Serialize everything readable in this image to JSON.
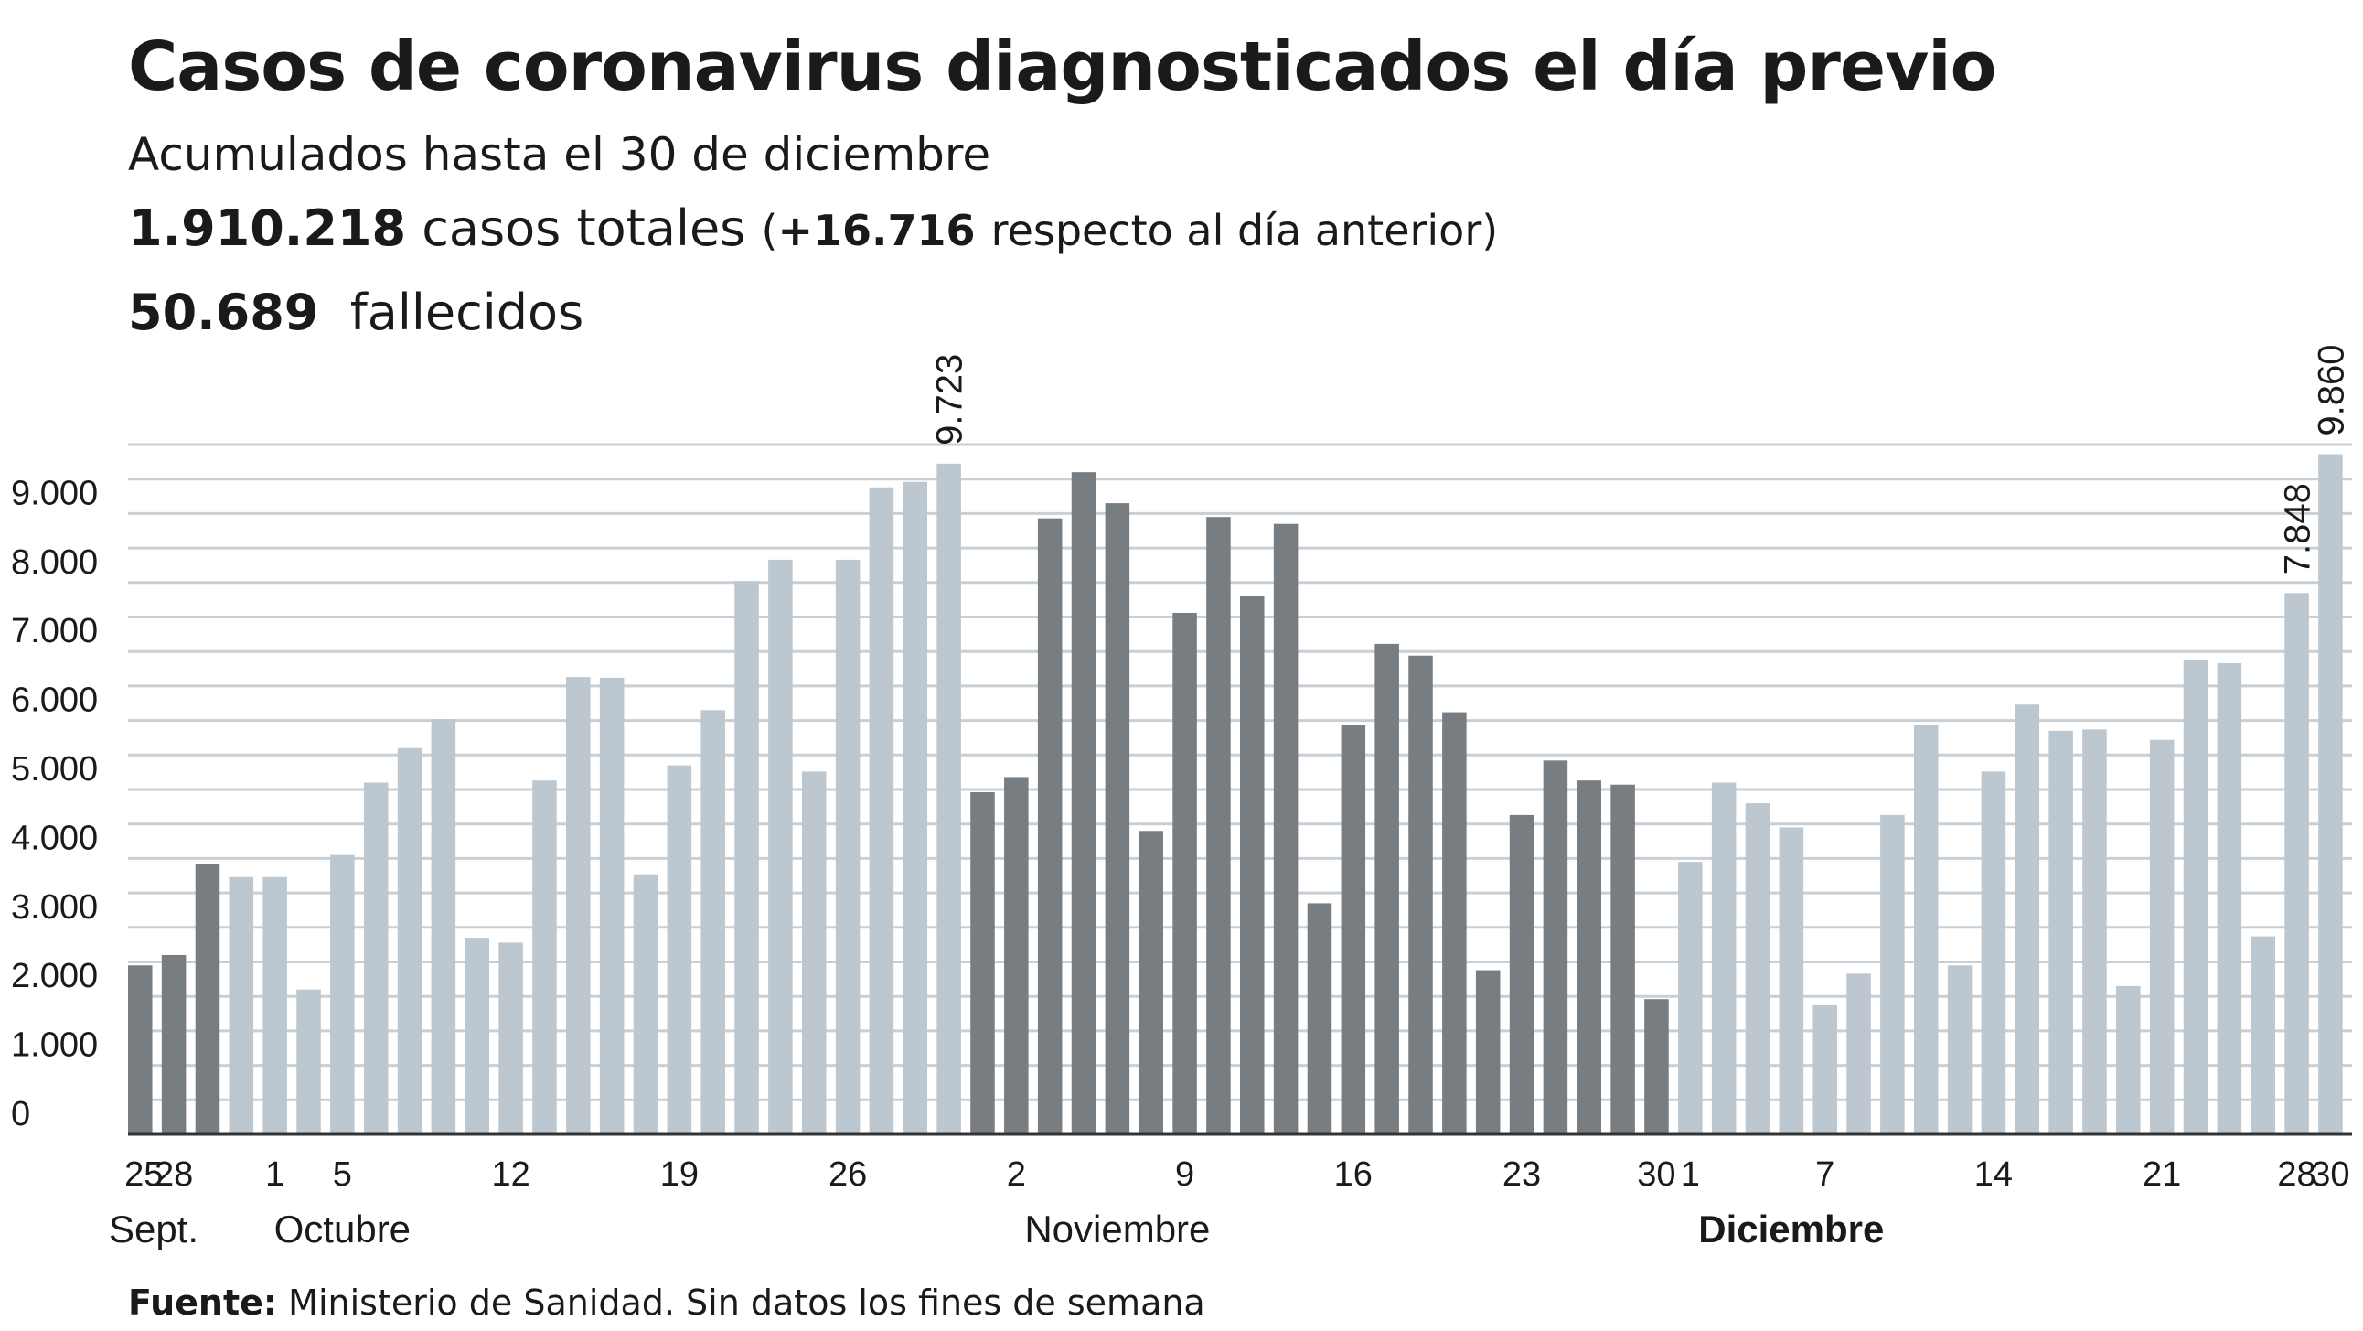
{
  "header": {
    "title": "Casos de coronavirus diagnosticados el día previo",
    "subtitle": "Acumulados hasta el 30 de diciembre",
    "total_cases": "1.910.218",
    "total_cases_label": "casos totales",
    "delta_open": "(",
    "delta_value": "+16.716",
    "delta_label": "respecto al día anterior)",
    "deaths": "50.689",
    "deaths_label": "fallecidos"
  },
  "source": {
    "label": "Fuente:",
    "text": "Ministerio de Sanidad. Sin datos los fines de semana"
  },
  "colors": {
    "dark": "#787d82",
    "light": "#bcc7d0",
    "grid": "#c8cfd5",
    "axis": "#333333"
  },
  "chart_data": {
    "type": "bar",
    "title": "Casos de coronavirus diagnosticados el día previo",
    "subtitle": "Acumulados hasta el 30 de diciembre",
    "xlabel": "",
    "ylabel": "",
    "ylim": [
      0,
      10000
    ],
    "grid": true,
    "yticks": [
      {
        "value": 0,
        "label": "0"
      },
      {
        "value": 1000,
        "label": "1.000"
      },
      {
        "value": 2000,
        "label": "2.000"
      },
      {
        "value": 3000,
        "label": "3.000"
      },
      {
        "value": 4000,
        "label": "4.000"
      },
      {
        "value": 5000,
        "label": "5.000"
      },
      {
        "value": 6000,
        "label": "6.000"
      },
      {
        "value": 7000,
        "label": "7.000"
      },
      {
        "value": 8000,
        "label": "8.000"
      },
      {
        "value": 9000,
        "label": "9.000"
      }
    ],
    "values": [
      2450,
      2600,
      3920,
      3730,
      3730,
      2100,
      4050,
      5100,
      5600,
      6020,
      2850,
      2780,
      5130,
      6630,
      6620,
      3770,
      5350,
      6150,
      8020,
      8330,
      5260,
      8330,
      9380,
      9460,
      9723,
      4960,
      5180,
      8930,
      9600,
      9150,
      4400,
      7560,
      8950,
      7800,
      8850,
      3350,
      5930,
      7110,
      6940,
      6120,
      2380,
      4630,
      5420,
      5130,
      5070,
      1960,
      3950,
      5100,
      4800,
      4450,
      1870,
      2330,
      4630,
      5930,
      2450,
      5260,
      6230,
      5850,
      5870,
      2150,
      5720,
      6880,
      6830,
      2870,
      7848,
      9860
    ],
    "shades": [
      "dark",
      "dark",
      "dark",
      "light",
      "light",
      "light",
      "light",
      "light",
      "light",
      "light",
      "light",
      "light",
      "light",
      "light",
      "light",
      "light",
      "light",
      "light",
      "light",
      "light",
      "light",
      "light",
      "light",
      "light",
      "light",
      "dark",
      "dark",
      "dark",
      "dark",
      "dark",
      "dark",
      "dark",
      "dark",
      "dark",
      "dark",
      "dark",
      "dark",
      "dark",
      "dark",
      "dark",
      "dark",
      "dark",
      "dark",
      "dark",
      "dark",
      "dark",
      "light",
      "light",
      "light",
      "light",
      "light",
      "light",
      "light",
      "light",
      "light",
      "light",
      "light",
      "light",
      "light",
      "light",
      "light",
      "light",
      "light",
      "light",
      "light",
      "light"
    ],
    "x_ticks": [
      {
        "index": 0,
        "label": "25"
      },
      {
        "index": 1,
        "label": "28"
      },
      {
        "index": 4,
        "label": "1"
      },
      {
        "index": 6,
        "label": "5"
      },
      {
        "index": 11,
        "label": "12"
      },
      {
        "index": 16,
        "label": "19"
      },
      {
        "index": 21,
        "label": "26"
      },
      {
        "index": 26,
        "label": "2"
      },
      {
        "index": 31,
        "label": "9"
      },
      {
        "index": 36,
        "label": "16"
      },
      {
        "index": 41,
        "label": "23"
      },
      {
        "index": 45,
        "label": "30"
      },
      {
        "index": 46,
        "label": "1"
      },
      {
        "index": 50,
        "label": "7"
      },
      {
        "index": 55,
        "label": "14"
      },
      {
        "index": 60,
        "label": "21"
      },
      {
        "index": 64,
        "label": "28"
      },
      {
        "index": 65,
        "label": "30"
      }
    ],
    "months": [
      {
        "index": 1,
        "label": "Sept.",
        "bold": false
      },
      {
        "index": 6,
        "label": "Octubre",
        "bold": false
      },
      {
        "index": 29,
        "label": "Noviembre",
        "bold": false
      },
      {
        "index": 49,
        "label": "Diciembre",
        "bold": true
      }
    ],
    "annotations": [
      {
        "index": 24,
        "label": "9.723"
      },
      {
        "index": 64,
        "label": "7.848"
      },
      {
        "index": 65,
        "label": "9.860"
      }
    ]
  }
}
